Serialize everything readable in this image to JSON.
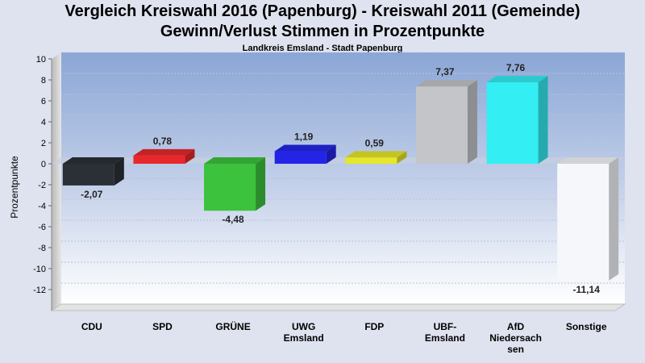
{
  "header": {
    "title_line1": "Vergleich Kreiswahl 2016 (Papenburg) - Kreiswahl 2011 (Gemeinde)",
    "title_line2": "Gewinn/Verlust Stimmen in Prozentpunkte",
    "subtitle": "Landkreis Emsland - Stadt Papenburg"
  },
  "chart_data": {
    "type": "bar",
    "ylabel": "Prozentpunkte",
    "ylim": [
      -14,
      10
    ],
    "yticks": [
      10,
      8,
      6,
      4,
      2,
      0,
      -2,
      -4,
      -6,
      -8,
      -10,
      -12
    ],
    "categories": [
      [
        "CDU"
      ],
      [
        "SPD"
      ],
      [
        "GRÜNE"
      ],
      [
        "UWG",
        "Emsland"
      ],
      [
        "FDP"
      ],
      [
        "UBF-",
        "Emsland"
      ],
      [
        "AfD",
        "Niedersach",
        "sen"
      ],
      [
        "Sonstige"
      ]
    ],
    "values": [
      -2.07,
      0.78,
      -4.48,
      1.19,
      0.59,
      7.37,
      7.76,
      -11.14
    ],
    "value_labels": [
      "-2,07",
      "0,78",
      "-4,48",
      "1,19",
      "0,59",
      "7,37",
      "7,76",
      "-11,14"
    ],
    "colors": [
      "#2b2f36",
      "#e8282c",
      "#3cc23c",
      "#2424e6",
      "#e6e62a",
      "#c3c5c9",
      "#33eef2",
      "#f6f7fb"
    ],
    "grid": true
  }
}
